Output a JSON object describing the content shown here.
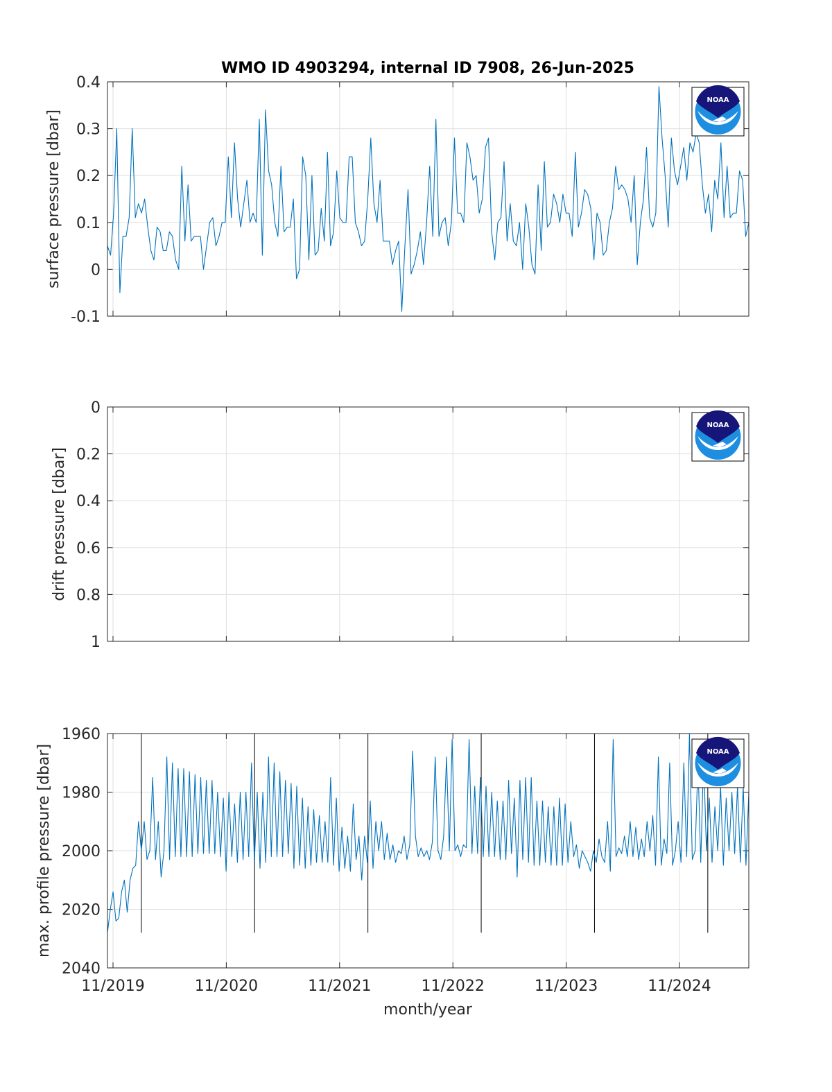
{
  "figure": {
    "title": "WMO ID 4903294, internal ID 7908, 26-Jun-2025",
    "xlabel": "month/year",
    "x_ticks": [
      "11/2019",
      "11/2020",
      "11/2021",
      "11/2022",
      "11/2023",
      "11/2024"
    ],
    "logo_text": "NOAA"
  },
  "colors": {
    "line": "#0072BD",
    "grid": "#dfdfdf",
    "axis": "#262626",
    "marker": "#000000",
    "logo_navy": "#16167a",
    "logo_blue": "#1e8fe0"
  },
  "chart_data": [
    {
      "type": "line",
      "ylabel": "surface pressure [dbar]",
      "ylim": [
        -0.1,
        0.4
      ],
      "yticks": [
        "0.4",
        "0.3",
        "0.2",
        "0.1",
        "0",
        "-0.1"
      ],
      "y_reversed": false,
      "grid": true,
      "x_range": [
        "11/2019",
        "08/2025"
      ],
      "series": [
        {
          "values": [
            0.05,
            0.03,
            0.12,
            0.3,
            -0.05,
            0.07,
            0.07,
            0.11,
            0.3,
            0.11,
            0.14,
            0.12,
            0.15,
            0.09,
            0.04,
            0.02,
            0.09,
            0.08,
            0.04,
            0.04,
            0.08,
            0.07,
            0.02,
            0.0,
            0.22,
            0.06,
            0.18,
            0.06,
            0.07,
            0.07,
            0.07,
            0.0,
            0.05,
            0.1,
            0.11,
            0.05,
            0.07,
            0.1,
            0.1,
            0.24,
            0.11,
            0.27,
            0.15,
            0.09,
            0.14,
            0.19,
            0.1,
            0.12,
            0.1,
            0.32,
            0.03,
            0.34,
            0.21,
            0.18,
            0.1,
            0.07,
            0.22,
            0.08,
            0.09,
            0.09,
            0.15,
            -0.02,
            0.0,
            0.24,
            0.2,
            0.02,
            0.2,
            0.03,
            0.04,
            0.13,
            0.06,
            0.25,
            0.05,
            0.08,
            0.21,
            0.11,
            0.1,
            0.1,
            0.24,
            0.24,
            0.1,
            0.08,
            0.05,
            0.06,
            0.15,
            0.28,
            0.14,
            0.1,
            0.19,
            0.06,
            0.06,
            0.06,
            0.01,
            0.04,
            0.06,
            -0.09,
            0.05,
            0.17,
            -0.01,
            0.01,
            0.04,
            0.08,
            0.01,
            0.1,
            0.22,
            0.07,
            0.32,
            0.07,
            0.1,
            0.11,
            0.05,
            0.1,
            0.28,
            0.12,
            0.12,
            0.1,
            0.27,
            0.24,
            0.19,
            0.2,
            0.12,
            0.15,
            0.26,
            0.28,
            0.08,
            0.02,
            0.1,
            0.11,
            0.23,
            0.06,
            0.14,
            0.06,
            0.05,
            0.1,
            0.0,
            0.14,
            0.09,
            0.01,
            -0.01,
            0.18,
            0.04,
            0.23,
            0.09,
            0.1,
            0.16,
            0.14,
            0.1,
            0.16,
            0.12,
            0.12,
            0.07,
            0.25,
            0.09,
            0.12,
            0.17,
            0.16,
            0.13,
            0.02,
            0.12,
            0.1,
            0.03,
            0.04,
            0.1,
            0.13,
            0.22,
            0.17,
            0.18,
            0.17,
            0.15,
            0.1,
            0.2,
            0.01,
            0.1,
            0.15,
            0.26,
            0.11,
            0.09,
            0.12,
            0.39,
            0.28,
            0.2,
            0.09,
            0.28,
            0.21,
            0.18,
            0.22,
            0.26,
            0.19,
            0.27,
            0.25,
            0.29,
            0.27,
            0.18,
            0.12,
            0.16,
            0.08,
            0.19,
            0.15,
            0.27,
            0.11,
            0.22,
            0.11,
            0.12,
            0.12,
            0.21,
            0.19,
            0.07,
            0.1
          ]
        }
      ]
    },
    {
      "type": "line",
      "ylabel": "drift pressure [dbar]",
      "ylim": [
        0,
        1
      ],
      "yticks": [
        "0",
        "0.2",
        "0.4",
        "0.6",
        "0.8",
        "1"
      ],
      "y_reversed": true,
      "grid": true,
      "x_range": [
        "11/2019",
        "08/2025"
      ],
      "series": []
    },
    {
      "type": "line",
      "ylabel": "max. profile pressure [dbar]",
      "ylim": [
        1960,
        2040
      ],
      "yticks": [
        "1960",
        "1980",
        "2000",
        "2020",
        "2040"
      ],
      "y_reversed": true,
      "grid": true,
      "x_range": [
        "11/2019",
        "08/2025"
      ],
      "vertical_markers": [
        "02/2020",
        "02/2021",
        "02/2022",
        "02/2023",
        "02/2024",
        "02/2025"
      ],
      "series": [
        {
          "values": [
            2028,
            2020,
            2014,
            2024,
            2023,
            2014,
            2010,
            2021,
            2010,
            2006,
            2005,
            1990,
            2000,
            1990,
            2003,
            2000,
            1975,
            2003,
            1990,
            2009,
            2000,
            1968,
            2003,
            1970,
            2002,
            1972,
            2002,
            1972,
            2002,
            1973,
            2002,
            1974,
            2001,
            1975,
            2001,
            1976,
            2001,
            1976,
            2001,
            1980,
            2002,
            1982,
            2007,
            1980,
            2002,
            1984,
            2004,
            1980,
            2003,
            1980,
            2002,
            1970,
            2004,
            1980,
            2006,
            1980,
            2004,
            1968,
            2002,
            1970,
            2002,
            1973,
            2002,
            1976,
            2001,
            1977,
            2006,
            1978,
            2005,
            1982,
            2006,
            1985,
            2005,
            1986,
            2004,
            1988,
            2004,
            1990,
            2004,
            1975,
            2005,
            1982,
            2007,
            1992,
            2006,
            1995,
            2007,
            1984,
            2003,
            1995,
            2010,
            1995,
            2004,
            1983,
            2006,
            1990,
            2000,
            1990,
            2003,
            1994,
            2003,
            1998,
            2004,
            2000,
            2001,
            1995,
            2003,
            1998,
            1966,
            1995,
            2002,
            1999,
            2002,
            2000,
            2003,
            1997,
            1968,
            2000,
            2003,
            1995,
            1968,
            2000,
            1962,
            2000,
            1998,
            2002,
            1998,
            1999,
            1962,
            2001,
            1978,
            2001,
            1975,
            2002,
            1978,
            2002,
            1980,
            2002,
            1983,
            2003,
            1983,
            2003,
            1976,
            2001,
            1982,
            2009,
            1976,
            2003,
            1975,
            2004,
            1975,
            2005,
            1983,
            2005,
            1983,
            2004,
            1985,
            2005,
            1985,
            2005,
            1982,
            2005,
            1984,
            2004,
            1990,
            2002,
            1998,
            2006,
            2000,
            2002,
            2004,
            2007,
            2000,
            2004,
            1996,
            2002,
            2004,
            1990,
            2007,
            1962,
            2002,
            1999,
            2001,
            1995,
            2002,
            1990,
            2002,
            1992,
            2003,
            1996,
            2002,
            1990,
            2000,
            1988,
            2005,
            1968,
            2005,
            1996,
            2001,
            1970,
            2005,
            2000,
            1990,
            2004,
            1970,
            2002,
            1960,
            2003,
            2000,
            1970,
            2004,
            1968,
            2000,
            1982,
            2004,
            1985,
            2000,
            1978,
            2005,
            1982,
            2000,
            1980,
            2001,
            1978,
            2004,
            1978,
            2005,
            1980
          ]
        }
      ]
    }
  ]
}
